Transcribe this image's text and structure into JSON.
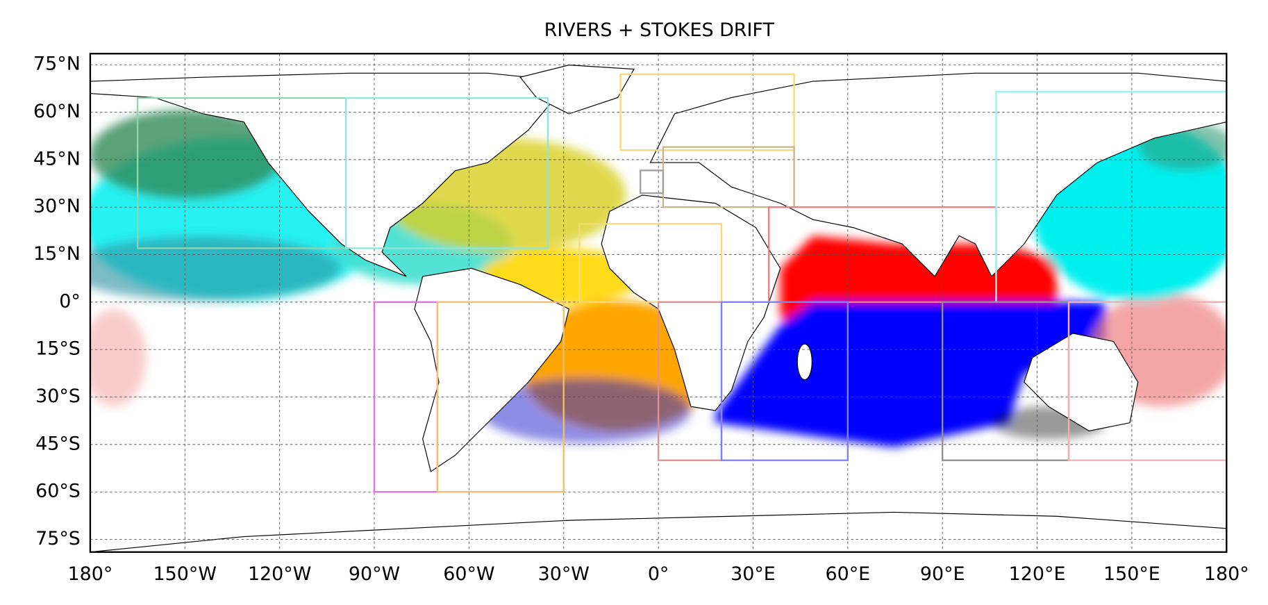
{
  "chart_data": {
    "type": "map",
    "title": "RIVERS + STOKES DRIFT",
    "xlim": [
      -180,
      180
    ],
    "ylim": [
      -79,
      78.5
    ],
    "grid": true,
    "xticks": [
      {
        "value": -180,
        "label": "180°"
      },
      {
        "value": -150,
        "label": "150°W"
      },
      {
        "value": -120,
        "label": "120°W"
      },
      {
        "value": -90,
        "label": "90°W"
      },
      {
        "value": -60,
        "label": "60°W"
      },
      {
        "value": -30,
        "label": "30°W"
      },
      {
        "value": 0,
        "label": "0°"
      },
      {
        "value": 30,
        "label": "30°E"
      },
      {
        "value": 60,
        "label": "60°E"
      },
      {
        "value": 90,
        "label": "90°E"
      },
      {
        "value": 120,
        "label": "120°E"
      },
      {
        "value": 150,
        "label": "150°E"
      },
      {
        "value": 180,
        "label": "180°"
      }
    ],
    "yticks": [
      {
        "value": 75,
        "label": "75°N"
      },
      {
        "value": 60,
        "label": "60°N"
      },
      {
        "value": 45,
        "label": "45°N"
      },
      {
        "value": 30,
        "label": "30°N"
      },
      {
        "value": 15,
        "label": "15°N"
      },
      {
        "value": 0,
        "label": "0°"
      },
      {
        "value": -15,
        "label": "15°S"
      },
      {
        "value": -30,
        "label": "30°S"
      },
      {
        "value": -45,
        "label": "45°S"
      },
      {
        "value": -60,
        "label": "60°S"
      },
      {
        "value": -75,
        "label": "75°S"
      }
    ],
    "regions": [
      {
        "color": "#f5d97a",
        "lon": [
          -12,
          43
        ],
        "lat": [
          48,
          72
        ]
      },
      {
        "color": "#c8b68a",
        "lon": [
          1.5,
          43
        ],
        "lat": [
          30,
          49
        ]
      },
      {
        "color": "#a0a0a0",
        "lon": [
          -5.7,
          1.5
        ],
        "lat": [
          34.4,
          41.6
        ]
      },
      {
        "color": "#f5d97a",
        "lon": [
          -25,
          20
        ],
        "lat": [
          0,
          24.7
        ]
      },
      {
        "color": "#8fd6b0",
        "lon": [
          -165,
          -99
        ],
        "lat": [
          17,
          64.5
        ]
      },
      {
        "color": "#8fe6dc",
        "lon": [
          -99,
          -35
        ],
        "lat": [
          17,
          64.5
        ]
      },
      {
        "color": "#e88080",
        "lon": [
          35,
          107
        ],
        "lat": [
          0,
          30
        ]
      },
      {
        "color": "#8ff5f5",
        "lon": [
          107,
          180
        ],
        "lat": [
          0,
          66.5
        ]
      },
      {
        "color": "#e070e0",
        "lon": [
          -90,
          -70
        ],
        "lat": [
          -60,
          0
        ]
      },
      {
        "color": "#f0c070",
        "lon": [
          -70,
          -30
        ],
        "lat": [
          -60,
          0
        ]
      },
      {
        "color": "#e09090",
        "lon": [
          0,
          20
        ],
        "lat": [
          -50,
          0
        ]
      },
      {
        "color": "#8080f0",
        "lon": [
          20,
          60
        ],
        "lat": [
          -50,
          0
        ]
      },
      {
        "color": "#909090",
        "lon": [
          90,
          130
        ],
        "lat": [
          -50,
          0
        ]
      },
      {
        "color": "#f0b0b0",
        "lon": [
          130,
          180
        ],
        "lat": [
          -50,
          0
        ]
      }
    ]
  }
}
